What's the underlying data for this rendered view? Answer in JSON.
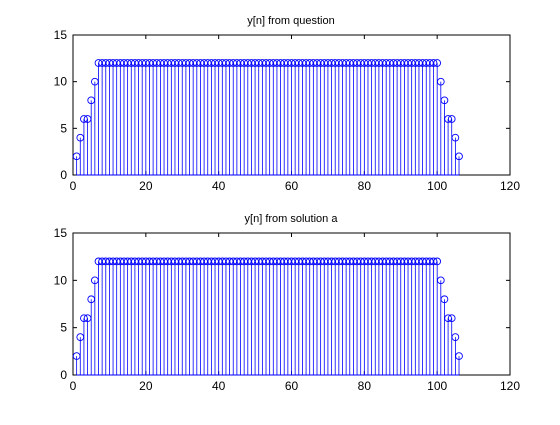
{
  "chart_data": [
    {
      "type": "stem",
      "title": "y[n] from question",
      "xlabel": "",
      "ylabel": "",
      "xlim": [
        0,
        120
      ],
      "ylim": [
        0,
        15
      ],
      "xticks": [
        0,
        20,
        40,
        60,
        80,
        100,
        120
      ],
      "yticks": [
        0,
        5,
        10,
        15
      ],
      "grid": false,
      "marker": "circle",
      "color": "#0000ff",
      "x": [
        1,
        2,
        3,
        4,
        5,
        6,
        7,
        8,
        9,
        10,
        11,
        12,
        13,
        14,
        15,
        16,
        17,
        18,
        19,
        20,
        21,
        22,
        23,
        24,
        25,
        26,
        27,
        28,
        29,
        30,
        31,
        32,
        33,
        34,
        35,
        36,
        37,
        38,
        39,
        40,
        41,
        42,
        43,
        44,
        45,
        46,
        47,
        48,
        49,
        50,
        51,
        52,
        53,
        54,
        55,
        56,
        57,
        58,
        59,
        60,
        61,
        62,
        63,
        64,
        65,
        66,
        67,
        68,
        69,
        70,
        71,
        72,
        73,
        74,
        75,
        76,
        77,
        78,
        79,
        80,
        81,
        82,
        83,
        84,
        85,
        86,
        87,
        88,
        89,
        90,
        91,
        92,
        93,
        94,
        95,
        96,
        97,
        98,
        99,
        100,
        101,
        102,
        103,
        104,
        105,
        106
      ],
      "y": [
        2,
        4,
        6,
        6,
        8,
        10,
        12,
        12,
        12,
        12,
        12,
        12,
        12,
        12,
        12,
        12,
        12,
        12,
        12,
        12,
        12,
        12,
        12,
        12,
        12,
        12,
        12,
        12,
        12,
        12,
        12,
        12,
        12,
        12,
        12,
        12,
        12,
        12,
        12,
        12,
        12,
        12,
        12,
        12,
        12,
        12,
        12,
        12,
        12,
        12,
        12,
        12,
        12,
        12,
        12,
        12,
        12,
        12,
        12,
        12,
        12,
        12,
        12,
        12,
        12,
        12,
        12,
        12,
        12,
        12,
        12,
        12,
        12,
        12,
        12,
        12,
        12,
        12,
        12,
        12,
        12,
        12,
        12,
        12,
        12,
        12,
        12,
        12,
        12,
        12,
        12,
        12,
        12,
        12,
        12,
        12,
        12,
        12,
        12,
        12,
        10,
        8,
        6,
        6,
        4,
        2
      ]
    },
    {
      "type": "stem",
      "title": "y[n] from solution a",
      "xlabel": "",
      "ylabel": "",
      "xlim": [
        0,
        120
      ],
      "ylim": [
        0,
        15
      ],
      "xticks": [
        0,
        20,
        40,
        60,
        80,
        100,
        120
      ],
      "yticks": [
        0,
        5,
        10,
        15
      ],
      "grid": false,
      "marker": "circle",
      "color": "#0000ff",
      "x": [
        1,
        2,
        3,
        4,
        5,
        6,
        7,
        8,
        9,
        10,
        11,
        12,
        13,
        14,
        15,
        16,
        17,
        18,
        19,
        20,
        21,
        22,
        23,
        24,
        25,
        26,
        27,
        28,
        29,
        30,
        31,
        32,
        33,
        34,
        35,
        36,
        37,
        38,
        39,
        40,
        41,
        42,
        43,
        44,
        45,
        46,
        47,
        48,
        49,
        50,
        51,
        52,
        53,
        54,
        55,
        56,
        57,
        58,
        59,
        60,
        61,
        62,
        63,
        64,
        65,
        66,
        67,
        68,
        69,
        70,
        71,
        72,
        73,
        74,
        75,
        76,
        77,
        78,
        79,
        80,
        81,
        82,
        83,
        84,
        85,
        86,
        87,
        88,
        89,
        90,
        91,
        92,
        93,
        94,
        95,
        96,
        97,
        98,
        99,
        100,
        101,
        102,
        103,
        104,
        105,
        106
      ],
      "y": [
        2,
        4,
        6,
        6,
        8,
        10,
        12,
        12,
        12,
        12,
        12,
        12,
        12,
        12,
        12,
        12,
        12,
        12,
        12,
        12,
        12,
        12,
        12,
        12,
        12,
        12,
        12,
        12,
        12,
        12,
        12,
        12,
        12,
        12,
        12,
        12,
        12,
        12,
        12,
        12,
        12,
        12,
        12,
        12,
        12,
        12,
        12,
        12,
        12,
        12,
        12,
        12,
        12,
        12,
        12,
        12,
        12,
        12,
        12,
        12,
        12,
        12,
        12,
        12,
        12,
        12,
        12,
        12,
        12,
        12,
        12,
        12,
        12,
        12,
        12,
        12,
        12,
        12,
        12,
        12,
        12,
        12,
        12,
        12,
        12,
        12,
        12,
        12,
        12,
        12,
        12,
        12,
        12,
        12,
        12,
        12,
        12,
        12,
        12,
        12,
        10,
        8,
        6,
        6,
        4,
        2
      ]
    }
  ]
}
